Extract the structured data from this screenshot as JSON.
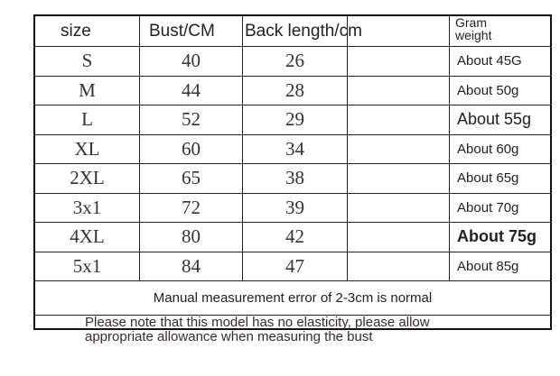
{
  "table": {
    "headers": {
      "size": "size",
      "bust": "Bust/CM",
      "back": "Back length/cm",
      "blank": "",
      "weight_line1": "Gram",
      "weight_line2": "weight"
    },
    "rows": [
      {
        "size": "S",
        "bust": "40",
        "back": "26",
        "weight": "About 45G"
      },
      {
        "size": "M",
        "bust": "44",
        "back": "28",
        "weight": "About 50g"
      },
      {
        "size": "L",
        "bust": "52",
        "back": "29",
        "weight": "About 55g"
      },
      {
        "size": "XL",
        "bust": "60",
        "back": "34",
        "weight": "About 60g"
      },
      {
        "size": "2XL",
        "bust": "65",
        "back": "38",
        "weight": "About 65g"
      },
      {
        "size": "3x1",
        "bust": "72",
        "back": "39",
        "weight": "About 70g"
      },
      {
        "size": "4XL",
        "bust": "80",
        "back": "42",
        "weight": "About 75g"
      },
      {
        "size": "5x1",
        "bust": "84",
        "back": "47",
        "weight": "About 85g"
      }
    ],
    "note_error": "Manual measurement error of 2-3cm is normal",
    "note_elasticity_line1": "Please note that this model has no elasticity, please allow",
    "note_elasticity_line2": "appropriate allowance when measuring the bust"
  }
}
